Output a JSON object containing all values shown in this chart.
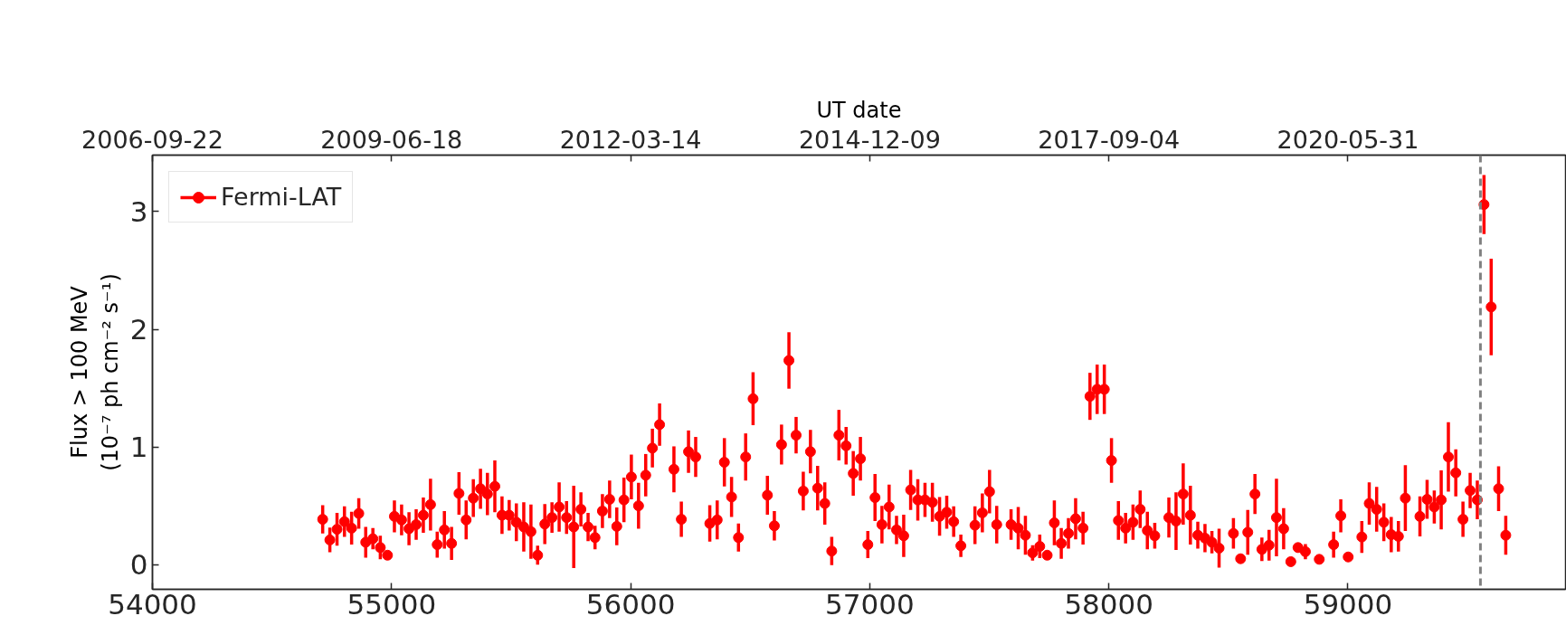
{
  "chart_data": {
    "type": "scatter",
    "xlabel": null,
    "x2label": "UT date",
    "ylabel": "Flux > 100 MeV\n(10⁻⁷ ph cm⁻² s⁻¹)",
    "xlim": [
      54000,
      59910
    ],
    "xticks": [
      54000,
      55000,
      56000,
      57000,
      58000,
      59000
    ],
    "x2lim": [
      "2006-09-22",
      "2022-11-27"
    ],
    "x2ticks": [
      "2006-09-22",
      "2009-06-18",
      "2012-03-14",
      "2014-12-09",
      "2017-09-04",
      "2020-05-31"
    ],
    "ylim": [
      -0.21,
      3.48
    ],
    "yticks": [
      0,
      1,
      2,
      3
    ],
    "grid": false,
    "legend": "top left",
    "marker": "circle",
    "ref_lines": [
      {
        "axis": "x",
        "value": 59554,
        "color": "#808080",
        "line_style": "dashed"
      }
    ],
    "x": [
      54712,
      54742,
      54772,
      54803,
      54833,
      54863,
      54892,
      54922,
      54953,
      54983,
      55012,
      55042,
      55073,
      55103,
      55133,
      55163,
      55191,
      55221,
      55251,
      55282,
      55312,
      55342,
      55372,
      55401,
      55432,
      55462,
      55492,
      55522,
      55553,
      55583,
      55611,
      55641,
      55671,
      55701,
      55732,
      55762,
      55792,
      55822,
      55851,
      55882,
      55912,
      55942,
      55972,
      56003,
      56033,
      56063,
      56091,
      56121,
      56181,
      56212,
      56242,
      56272,
      56331,
      56362,
      56392,
      56422,
      56451,
      56481,
      56512,
      56572,
      56601,
      56631,
      56662,
      56692,
      56722,
      56752,
      56782,
      56812,
      56841,
      56871,
      56901,
      56931,
      56961,
      56992,
      57022,
      57051,
      57081,
      57112,
      57142,
      57171,
      57201,
      57231,
      57262,
      57292,
      57322,
      57351,
      57381,
      57440,
      57471,
      57501,
      57531,
      57591,
      57621,
      57651,
      57681,
      57711,
      57742,
      57772,
      57801,
      57831,
      57861,
      57892,
      57921,
      57951,
      57981,
      58011,
      58040,
      58070,
      58101,
      58131,
      58161,
      58192,
      58251,
      58281,
      58311,
      58341,
      58372,
      58402,
      58431,
      58461,
      58521,
      58551,
      58581,
      58611,
      58640,
      58670,
      58701,
      58731,
      58761,
      58791,
      58822,
      58880,
      58940,
      58970,
      59001,
      59058,
      59089,
      59120,
      59150,
      59181,
      59211,
      59240,
      59301,
      59331,
      59361,
      59390,
      59420,
      59451,
      59481,
      59511,
      59541,
      59569,
      59599,
      59630,
      59660
    ],
    "series": [
      {
        "name": "Fermi-LAT",
        "color": "#ff0000",
        "values": [
          0.385,
          0.21,
          0.3,
          0.365,
          0.31,
          0.435,
          0.19,
          0.22,
          0.145,
          0.08,
          0.41,
          0.38,
          0.305,
          0.34,
          0.42,
          0.51,
          0.17,
          0.295,
          0.18,
          0.605,
          0.38,
          0.565,
          0.645,
          0.6,
          0.665,
          0.42,
          0.42,
          0.36,
          0.32,
          0.28,
          0.08,
          0.345,
          0.4,
          0.49,
          0.4,
          0.32,
          0.47,
          0.32,
          0.23,
          0.455,
          0.555,
          0.325,
          0.55,
          0.745,
          0.5,
          0.76,
          0.99,
          1.19,
          0.81,
          0.385,
          0.96,
          0.915,
          0.35,
          0.38,
          0.87,
          0.575,
          0.23,
          0.915,
          1.41,
          0.59,
          0.33,
          1.02,
          1.735,
          1.1,
          0.625,
          0.96,
          0.65,
          0.52,
          0.115,
          1.1,
          1.01,
          0.775,
          0.9,
          0.17,
          0.57,
          0.34,
          0.49,
          0.295,
          0.245,
          0.635,
          0.55,
          0.55,
          0.53,
          0.41,
          0.445,
          0.365,
          0.16,
          0.335,
          0.44,
          0.62,
          0.34,
          0.34,
          0.31,
          0.25,
          0.1,
          0.155,
          0.08,
          0.355,
          0.18,
          0.265,
          0.39,
          0.31,
          1.43,
          1.49,
          1.49,
          0.885,
          0.375,
          0.31,
          0.36,
          0.47,
          0.29,
          0.245,
          0.4,
          0.37,
          0.6,
          0.42,
          0.25,
          0.225,
          0.19,
          0.14,
          0.265,
          0.05,
          0.275,
          0.6,
          0.13,
          0.165,
          0.4,
          0.305,
          0.025,
          0.145,
          0.11,
          0.045,
          0.17,
          0.415,
          0.065,
          0.235,
          0.52,
          0.47,
          0.36,
          0.255,
          0.24,
          0.565,
          0.41,
          0.555,
          0.49,
          0.55,
          0.915,
          0.78,
          0.385,
          0.63,
          0.55,
          3.06,
          2.19,
          0.645,
          0.25
        ],
        "errors": [
          0.12,
          0.105,
          0.14,
          0.13,
          0.14,
          0.13,
          0.13,
          0.09,
          0.1,
          null,
          0.135,
          0.13,
          0.14,
          0.13,
          0.15,
          0.22,
          0.11,
          0.16,
          0.14,
          0.18,
          0.165,
          0.16,
          0.17,
          0.18,
          0.22,
          0.16,
          0.13,
          0.16,
          0.21,
          0.23,
          0.08,
          0.17,
          0.13,
          0.21,
          0.14,
          0.35,
          0.145,
          0.12,
          0.1,
          0.145,
          0.16,
          0.16,
          0.19,
          0.19,
          0.195,
          0.18,
          0.165,
          0.18,
          0.195,
          0.15,
          0.18,
          0.17,
          0.155,
          0.165,
          0.205,
          0.17,
          0.12,
          0.2,
          0.225,
          0.165,
          0.125,
          0.17,
          0.24,
          0.155,
          0.165,
          0.185,
          0.19,
          0.18,
          0.12,
          0.215,
          0.16,
          0.19,
          0.185,
          0.115,
          0.2,
          0.16,
          0.19,
          0.12,
          0.18,
          0.17,
          0.175,
          0.145,
          0.165,
          0.165,
          0.14,
          0.13,
          0.095,
          0.16,
          0.165,
          0.185,
          0.16,
          0.13,
          0.18,
          0.165,
          0.065,
          0.1,
          null,
          0.19,
          0.13,
          0.13,
          0.175,
          0.14,
          0.2,
          0.21,
          0.21,
          0.19,
          0.165,
          0.13,
          0.15,
          0.16,
          0.16,
          0.11,
          0.17,
          0.245,
          0.26,
          0.25,
          0.115,
          0.12,
          0.095,
          0.165,
          0.13,
          null,
          0.19,
          0.17,
          0.1,
          0.13,
          0.33,
          0.175,
          null,
          0.04,
          0.065,
          null,
          0.11,
          0.14,
          null,
          0.135,
          0.18,
          0.19,
          0.16,
          0.15,
          0.13,
          0.28,
          0.17,
          0.165,
          0.14,
          0.25,
          0.295,
          0.2,
          0.15,
          0.15,
          0.165,
          0.25,
          0.41,
          0.19,
          0.165
        ]
      }
    ]
  }
}
